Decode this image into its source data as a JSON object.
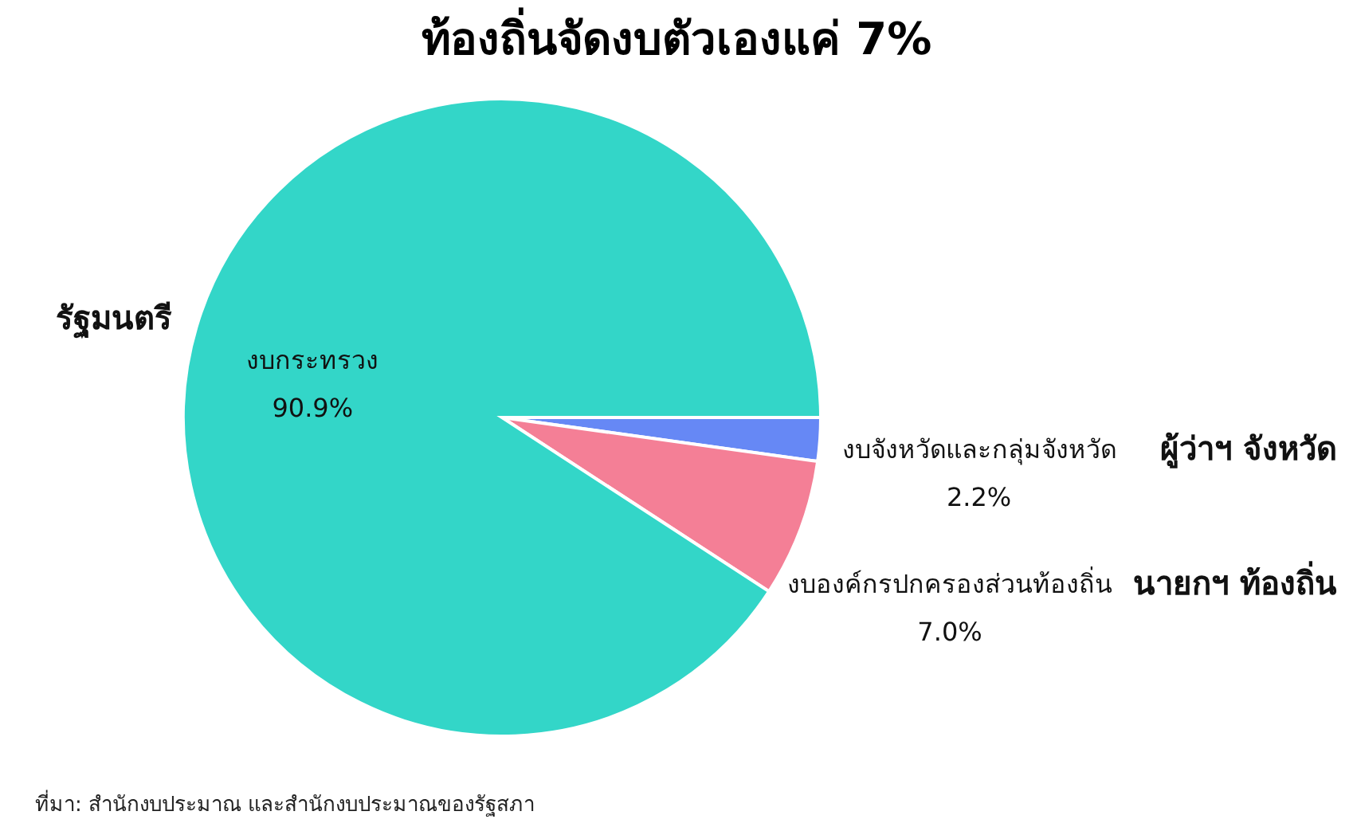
{
  "chart_data": {
    "type": "pie",
    "title": "ท้องถิ่นจัดงบตัวเองแค่ 7%",
    "categories": [
      "งบจังหวัดและกลุ่มจังหวัด",
      "งบองค์กรปกครองส่วนท้องถิ่น",
      "งบกระทรวง"
    ],
    "values": [
      2.2,
      7.0,
      90.9
    ],
    "value_labels": [
      "2.2%",
      "7.0%",
      "90.9%"
    ],
    "colors": [
      "#6688f5",
      "#f47f96",
      "#33d6c8"
    ],
    "annotations": [
      "ผู้ว่าฯ จังหวัด",
      "นายกฯ ท้องถิ่น",
      "รัฐมนตรี",
      "ที่มา: สำนักงบประมาณ  และสำนักงบประมาณของรัฐสภา"
    ],
    "legend": false
  }
}
